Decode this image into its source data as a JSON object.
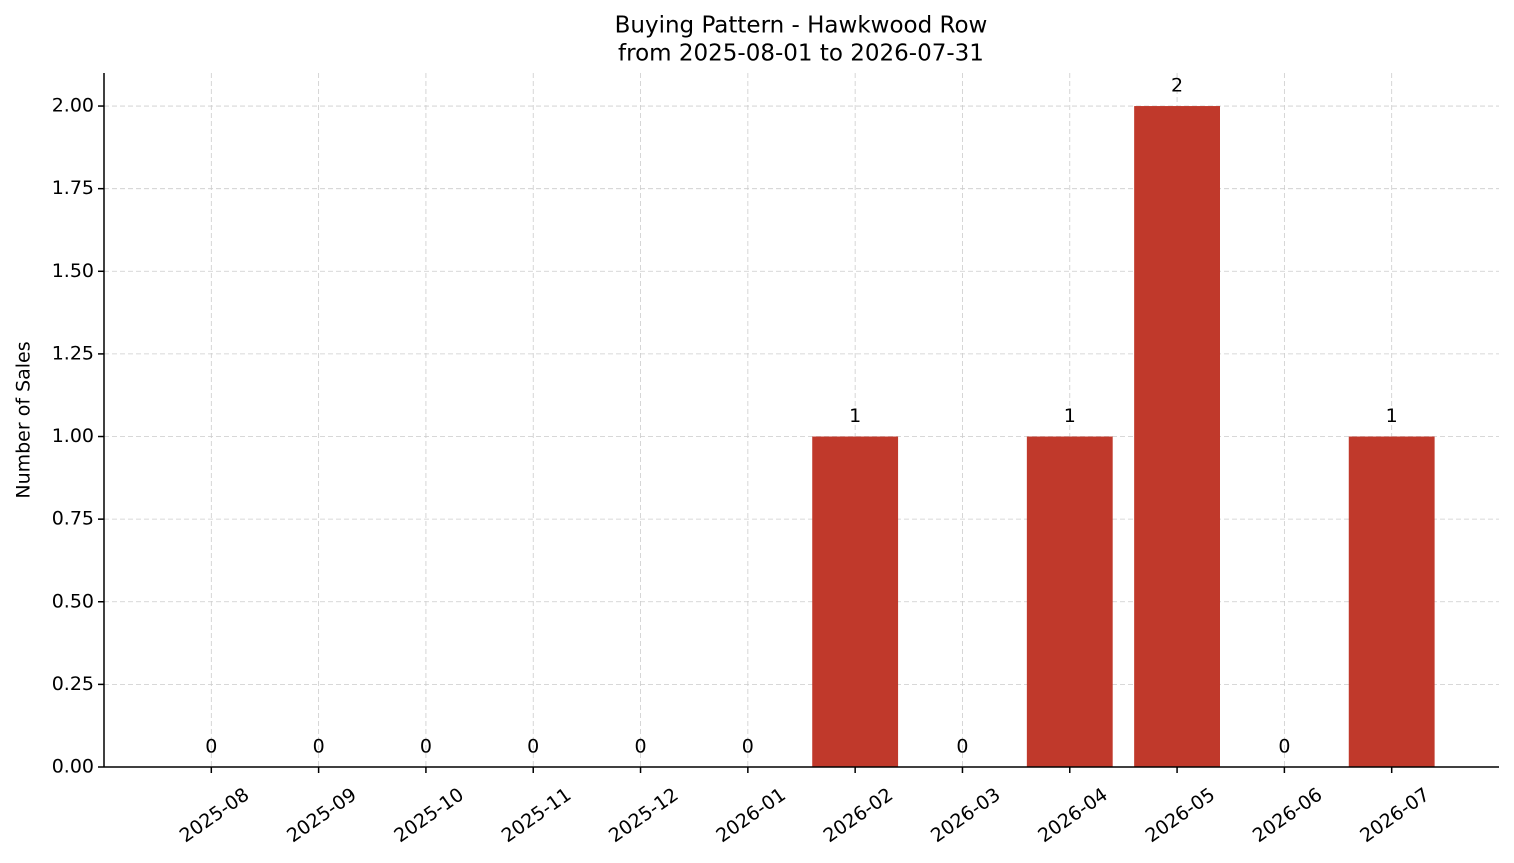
{
  "chart_data": {
    "type": "bar",
    "title": "Buying Pattern - Hawkwood Row",
    "subtitle": "from 2025-08-01 to 2026-07-31",
    "y_label": "Number of Sales",
    "categories": [
      "2025-08",
      "2025-09",
      "2025-10",
      "2025-11",
      "2025-12",
      "2026-01",
      "2026-02",
      "2026-03",
      "2026-04",
      "2026-05",
      "2026-06",
      "2026-07"
    ],
    "values": [
      0,
      0,
      0,
      0,
      0,
      0,
      1,
      0,
      1,
      2,
      0,
      1
    ],
    "color": "#c0392b",
    "ylim": [
      0,
      2.1
    ],
    "yticks": [
      {
        "value": 0,
        "label": "0.00"
      },
      {
        "value": 0.25,
        "label": "0.25"
      },
      {
        "value": 0.5,
        "label": "0.50"
      },
      {
        "value": 0.75,
        "label": "0.75"
      },
      {
        "value": 1,
        "label": "1.00"
      },
      {
        "value": 1.25,
        "label": "1.25"
      },
      {
        "value": 1.5,
        "label": "1.50"
      },
      {
        "value": 1.75,
        "label": "1.75"
      },
      {
        "value": 2,
        "label": "2.00"
      }
    ],
    "grid": true
  }
}
